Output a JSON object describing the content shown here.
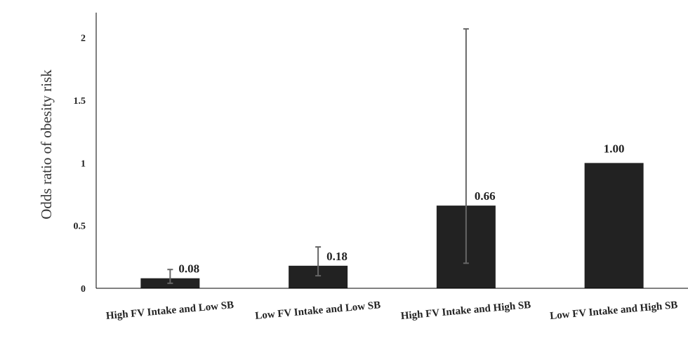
{
  "chart_data": {
    "type": "bar",
    "title": "",
    "xlabel": "",
    "ylabel": "Odds ratio of obesity risk",
    "categories": [
      "High FV Intake and Low SB",
      "Low FV Intake and Low SB",
      "High FV Intake and High SB",
      "Low FV Intake and High SB"
    ],
    "values": [
      0.08,
      0.18,
      0.66,
      1.0
    ],
    "data_labels": [
      "0.08",
      "0.18",
      "0.66",
      "1.00"
    ],
    "error_low": [
      0.04,
      0.1,
      0.2,
      null
    ],
    "error_high": [
      0.15,
      0.33,
      2.07,
      null
    ],
    "yticks": [
      0,
      0.5,
      1,
      1.5,
      2
    ],
    "ytick_labels": [
      "0",
      "0.5",
      "1",
      "1.5",
      "2"
    ],
    "ylim": [
      0,
      2.2
    ],
    "grid": false,
    "bar_color": "#222222",
    "errorbar_color": "#666666"
  }
}
